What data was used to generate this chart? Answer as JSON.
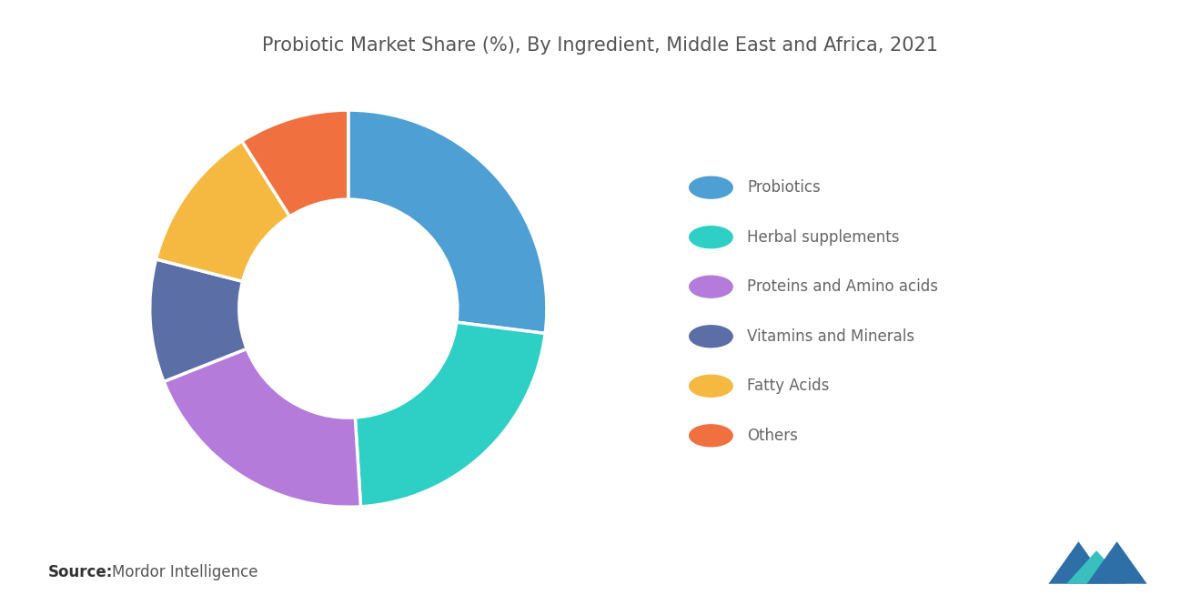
{
  "title": "Probiotic Market Share (%), By Ingredient, Middle East and Africa, 2021",
  "segments": [
    {
      "label": "Probiotics",
      "value": 27,
      "color": "#4E9FD4"
    },
    {
      "label": "Herbal supplements",
      "value": 22,
      "color": "#2ECFC4"
    },
    {
      "label": "Proteins and Amino acids",
      "value": 20,
      "color": "#B57BDB"
    },
    {
      "label": "Vitamins and Minerals",
      "value": 10,
      "color": "#5B6FA6"
    },
    {
      "label": "Fatty Acids",
      "value": 12,
      "color": "#F5B942"
    },
    {
      "label": "Others",
      "value": 9,
      "color": "#F07040"
    }
  ],
  "source_bold": "Source:",
  "source_text": "Mordor Intelligence",
  "title_fontsize": 15,
  "legend_fontsize": 12,
  "source_fontsize": 12,
  "bg_color": "#ffffff",
  "title_color": "#555555",
  "legend_text_color": "#666666"
}
